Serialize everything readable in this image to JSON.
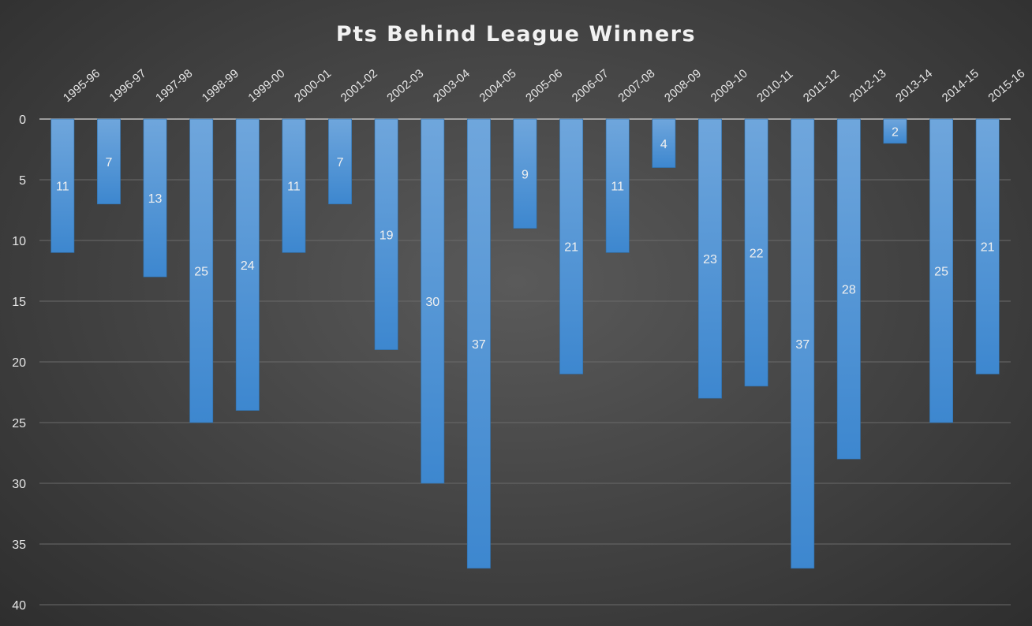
{
  "chart_data": {
    "type": "bar",
    "title": "Pts Behind League Winners",
    "xlabel": "",
    "ylabel": "",
    "categories": [
      "1995-96",
      "1996-97",
      "1997-98",
      "1998-99",
      "1999-00",
      "2000-01",
      "2001-02",
      "2002-03",
      "2003-04",
      "2004-05",
      "2005-06",
      "2006-07",
      "2007-08",
      "2008-09",
      "2009-10",
      "2010-11",
      "2011-12",
      "2012-13",
      "2013-14",
      "2014-15",
      "2015-16"
    ],
    "values": [
      11,
      7,
      13,
      25,
      24,
      11,
      7,
      19,
      30,
      37,
      9,
      21,
      11,
      4,
      23,
      22,
      37,
      28,
      2,
      25,
      21
    ],
    "ylim": [
      0,
      40
    ],
    "y_ticks": [
      0,
      5,
      10,
      15,
      20,
      25,
      30,
      35,
      40
    ],
    "y_axis_reversed": true,
    "x_axis_position": "top",
    "grid": true,
    "legend": "none",
    "data_labels": "inside-center",
    "colors": {
      "bar_top": "#6fa6dc",
      "bar_bottom": "#3d87cf",
      "label": "#f0f0f0"
    }
  }
}
